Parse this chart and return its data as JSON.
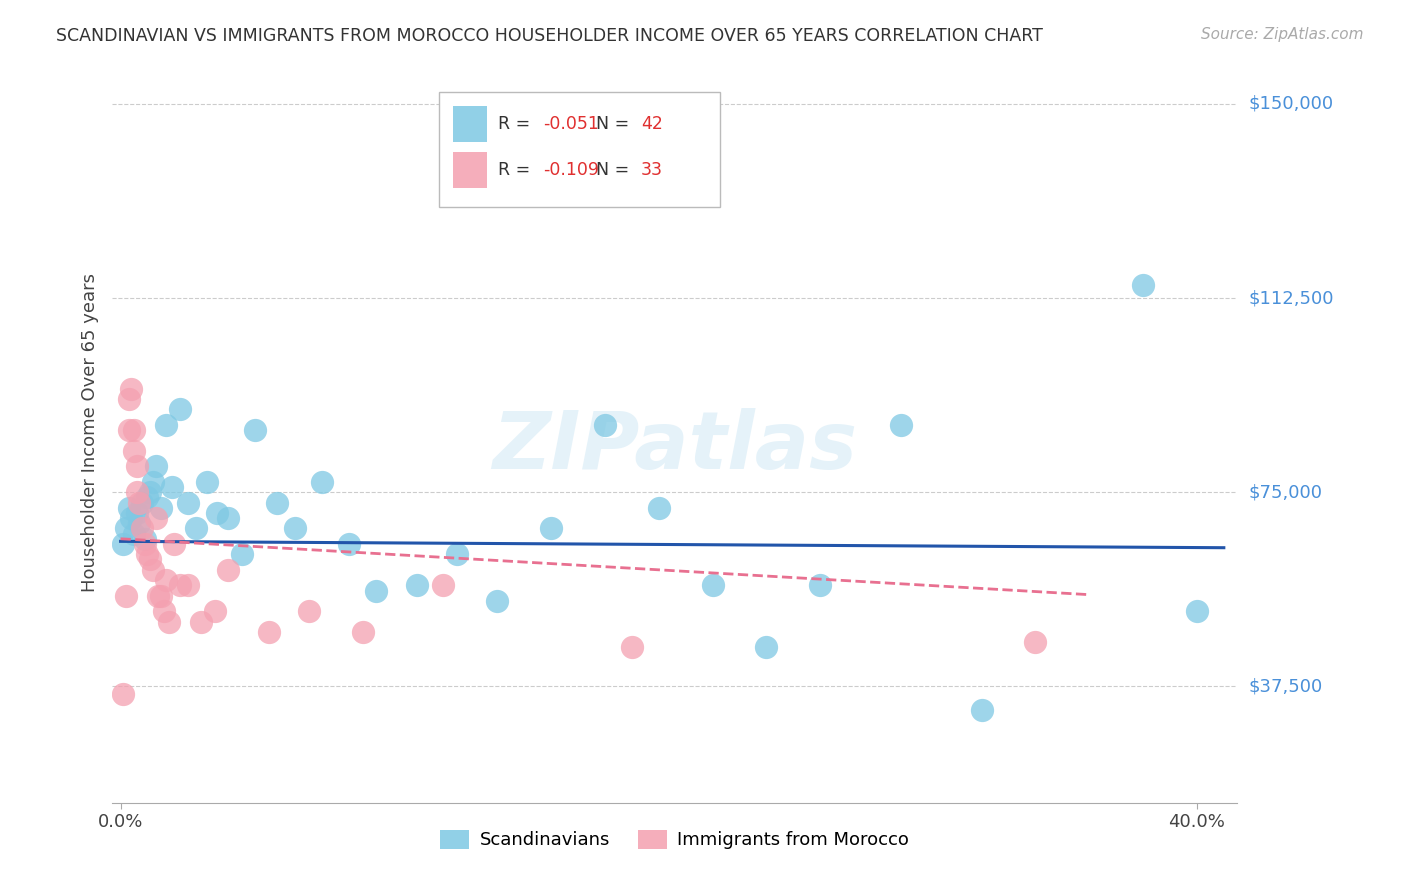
{
  "title": "SCANDINAVIAN VS IMMIGRANTS FROM MOROCCO HOUSEHOLDER INCOME OVER 65 YEARS CORRELATION CHART",
  "source": "Source: ZipAtlas.com",
  "ylabel": "Householder Income Over 65 years",
  "ytick_labels": [
    "$150,000",
    "$112,500",
    "$75,000",
    "$37,500"
  ],
  "ytick_values": [
    150000,
    112500,
    75000,
    37500
  ],
  "ymin": 15000,
  "ymax": 158000,
  "xmin": -0.003,
  "xmax": 0.415,
  "scandinavian_color": "#7ec8e3",
  "morocco_color": "#f4a0b0",
  "trend_scandinavian_color": "#2255aa",
  "trend_morocco_color": "#e87090",
  "watermark": "ZIPatlas",
  "R_scand": "-0.051",
  "N_scand": "42",
  "R_morocco": "-0.109",
  "N_morocco": "33",
  "scandinavians_x": [
    0.001,
    0.002,
    0.003,
    0.004,
    0.005,
    0.006,
    0.007,
    0.008,
    0.009,
    0.01,
    0.011,
    0.012,
    0.013,
    0.015,
    0.017,
    0.019,
    0.022,
    0.025,
    0.028,
    0.032,
    0.036,
    0.04,
    0.045,
    0.05,
    0.058,
    0.065,
    0.075,
    0.085,
    0.095,
    0.11,
    0.125,
    0.14,
    0.16,
    0.18,
    0.2,
    0.22,
    0.24,
    0.26,
    0.29,
    0.32,
    0.38,
    0.4
  ],
  "scandinavians_y": [
    65000,
    68000,
    72000,
    70000,
    67000,
    71000,
    69000,
    73000,
    66000,
    74000,
    75000,
    77000,
    80000,
    72000,
    88000,
    76000,
    91000,
    73000,
    68000,
    77000,
    71000,
    70000,
    63000,
    87000,
    73000,
    68000,
    77000,
    65000,
    56000,
    57000,
    63000,
    54000,
    68000,
    88000,
    72000,
    57000,
    45000,
    57000,
    88000,
    33000,
    115000,
    52000
  ],
  "morocco_x": [
    0.001,
    0.002,
    0.003,
    0.003,
    0.004,
    0.005,
    0.005,
    0.006,
    0.006,
    0.007,
    0.008,
    0.009,
    0.01,
    0.011,
    0.012,
    0.013,
    0.014,
    0.015,
    0.016,
    0.017,
    0.018,
    0.02,
    0.022,
    0.025,
    0.03,
    0.035,
    0.04,
    0.055,
    0.07,
    0.09,
    0.12,
    0.19,
    0.34
  ],
  "morocco_y": [
    36000,
    55000,
    93000,
    87000,
    95000,
    87000,
    83000,
    80000,
    75000,
    73000,
    68000,
    65000,
    63000,
    62000,
    60000,
    70000,
    55000,
    55000,
    52000,
    58000,
    50000,
    65000,
    57000,
    57000,
    50000,
    52000,
    60000,
    48000,
    52000,
    48000,
    57000,
    45000,
    46000
  ]
}
